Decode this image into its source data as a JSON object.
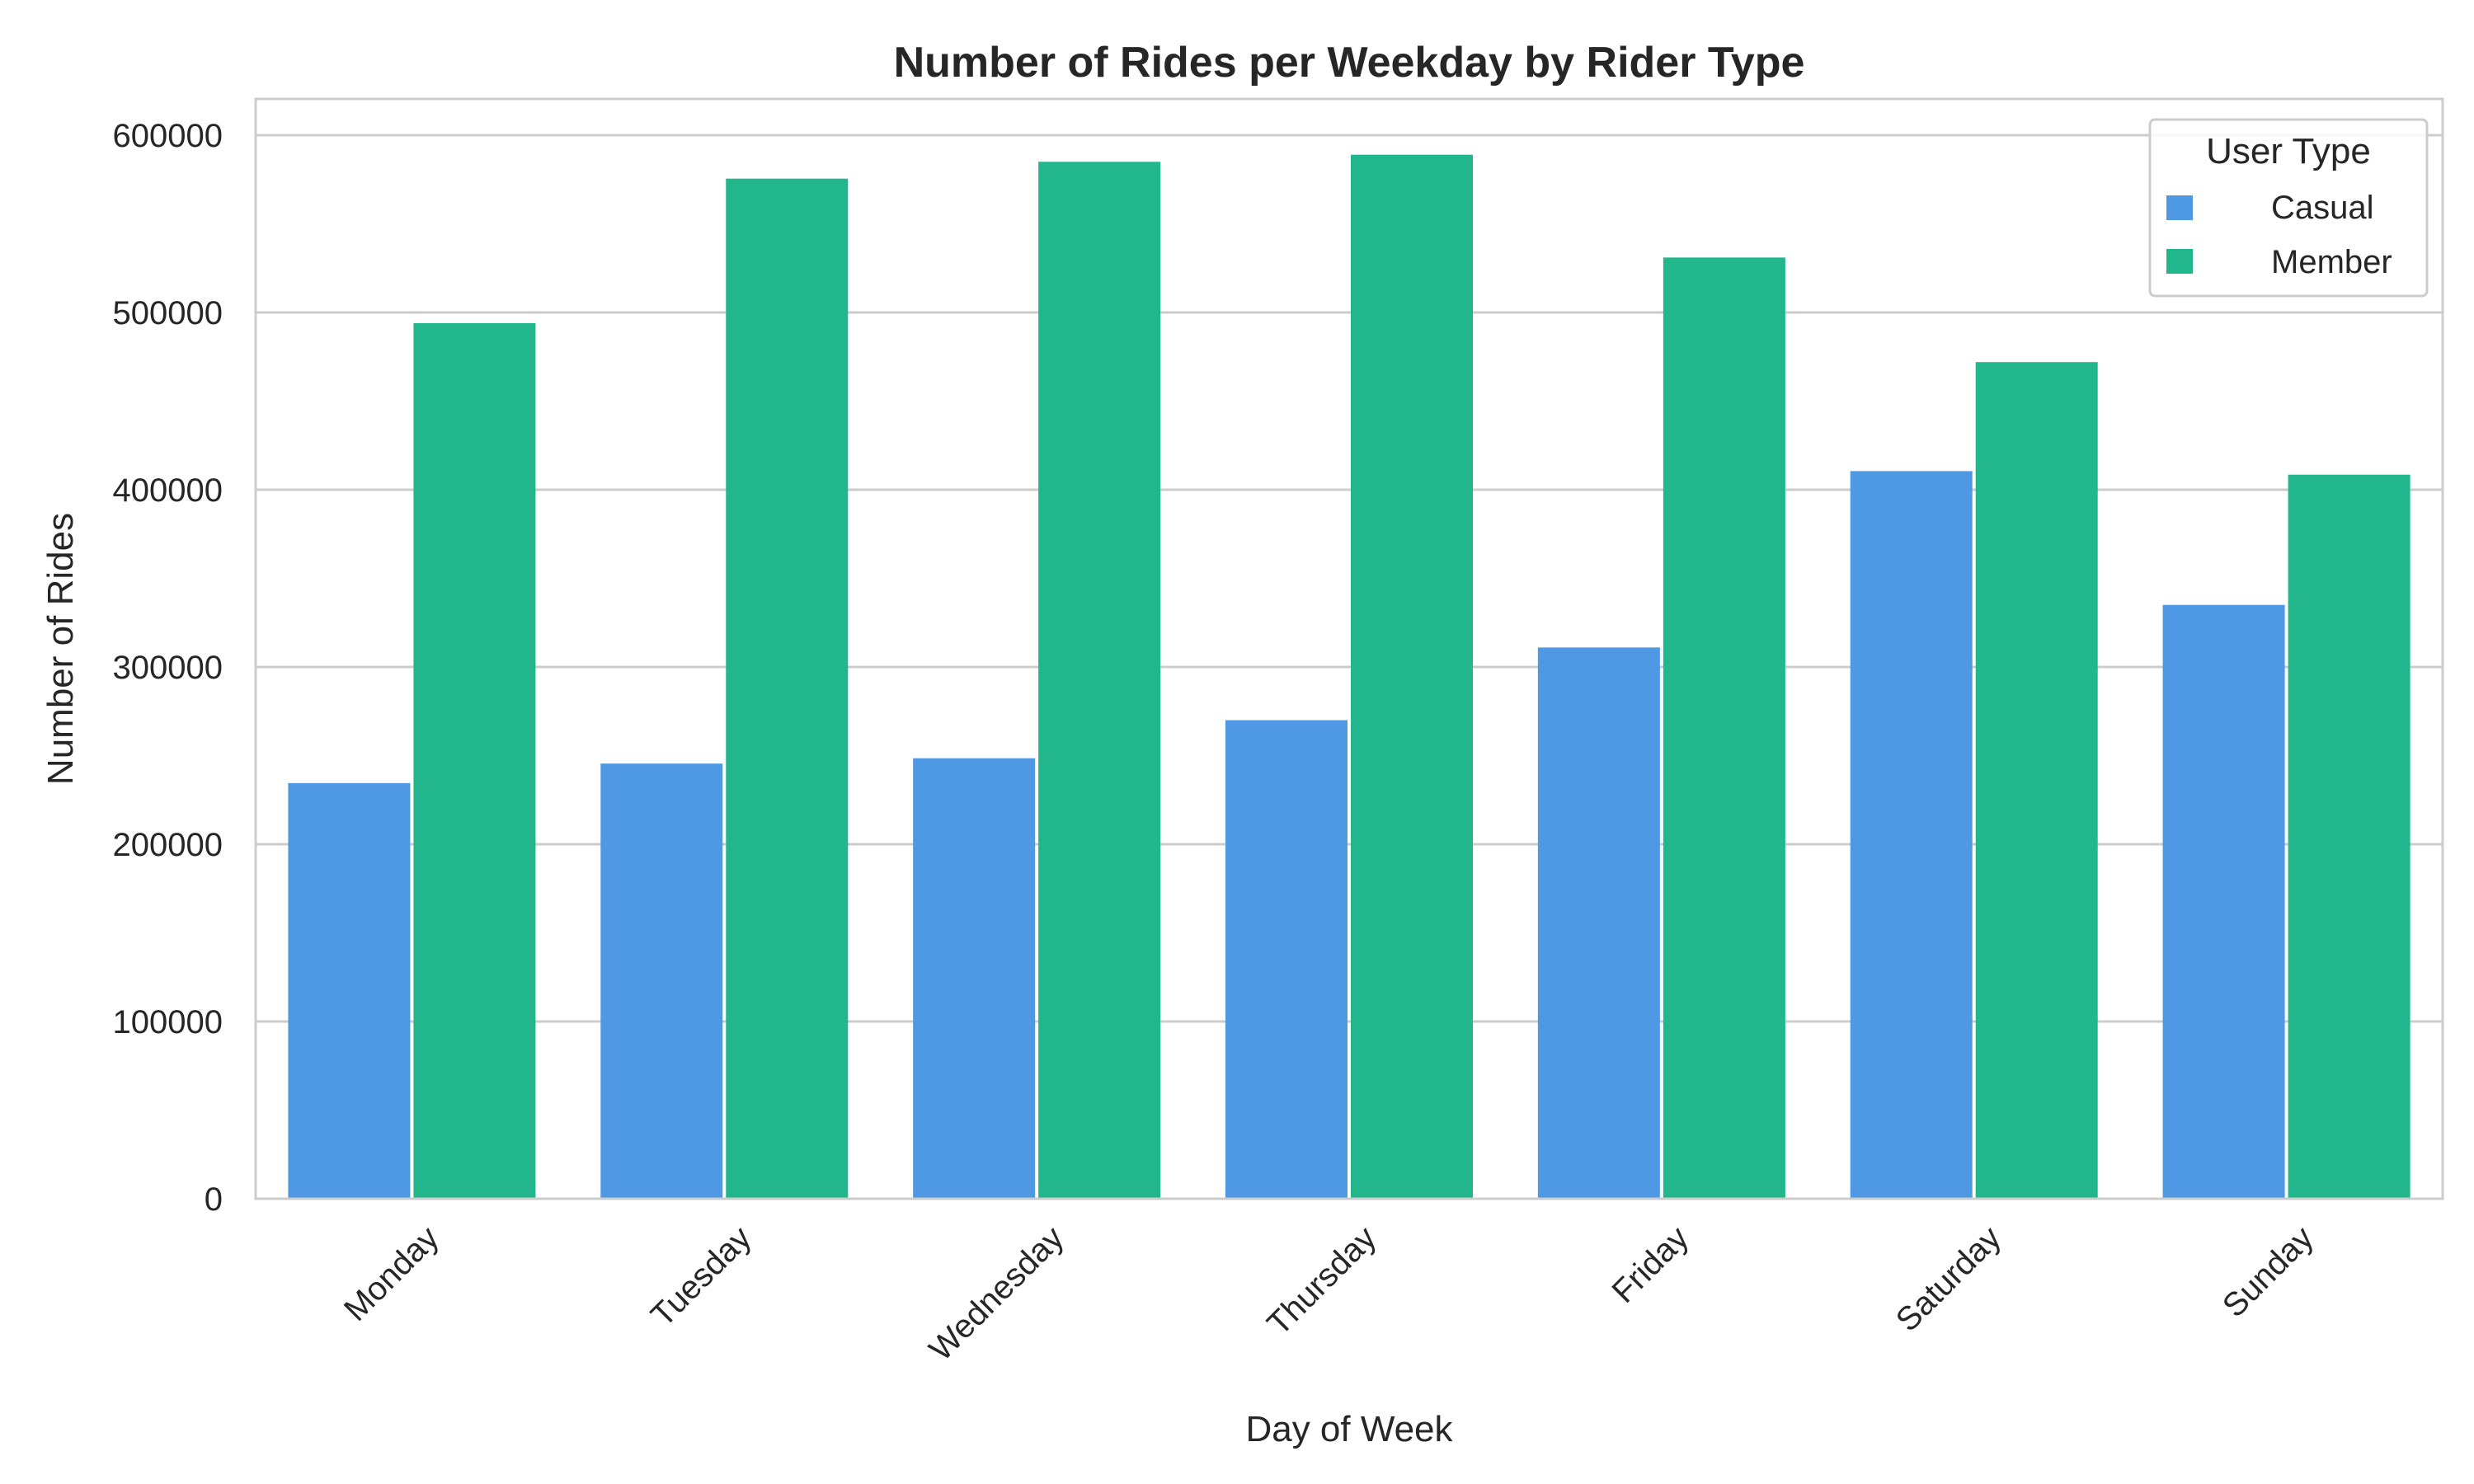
{
  "chart_data": {
    "type": "bar",
    "title": "Number of Rides per Weekday by Rider Type",
    "xlabel": "Day of Week",
    "ylabel": "Number of Rides",
    "categories": [
      "Monday",
      "Tuesday",
      "Wednesday",
      "Thursday",
      "Friday",
      "Saturday",
      "Sunday"
    ],
    "series": [
      {
        "name": "Casual",
        "color": "#4f99e4",
        "values": [
          234500,
          245500,
          248500,
          270000,
          311000,
          410500,
          335000
        ]
      },
      {
        "name": "Member",
        "color": "#21b68c",
        "values": [
          494000,
          575500,
          585000,
          589000,
          531000,
          472000,
          408500
        ]
      }
    ],
    "ylim": [
      0,
      600000
    ],
    "yticks": [
      "0",
      "100000",
      "200000",
      "300000",
      "400000",
      "500000",
      "600000"
    ],
    "grid": true,
    "legend": {
      "title": "User Type",
      "placement": "top-right"
    }
  }
}
